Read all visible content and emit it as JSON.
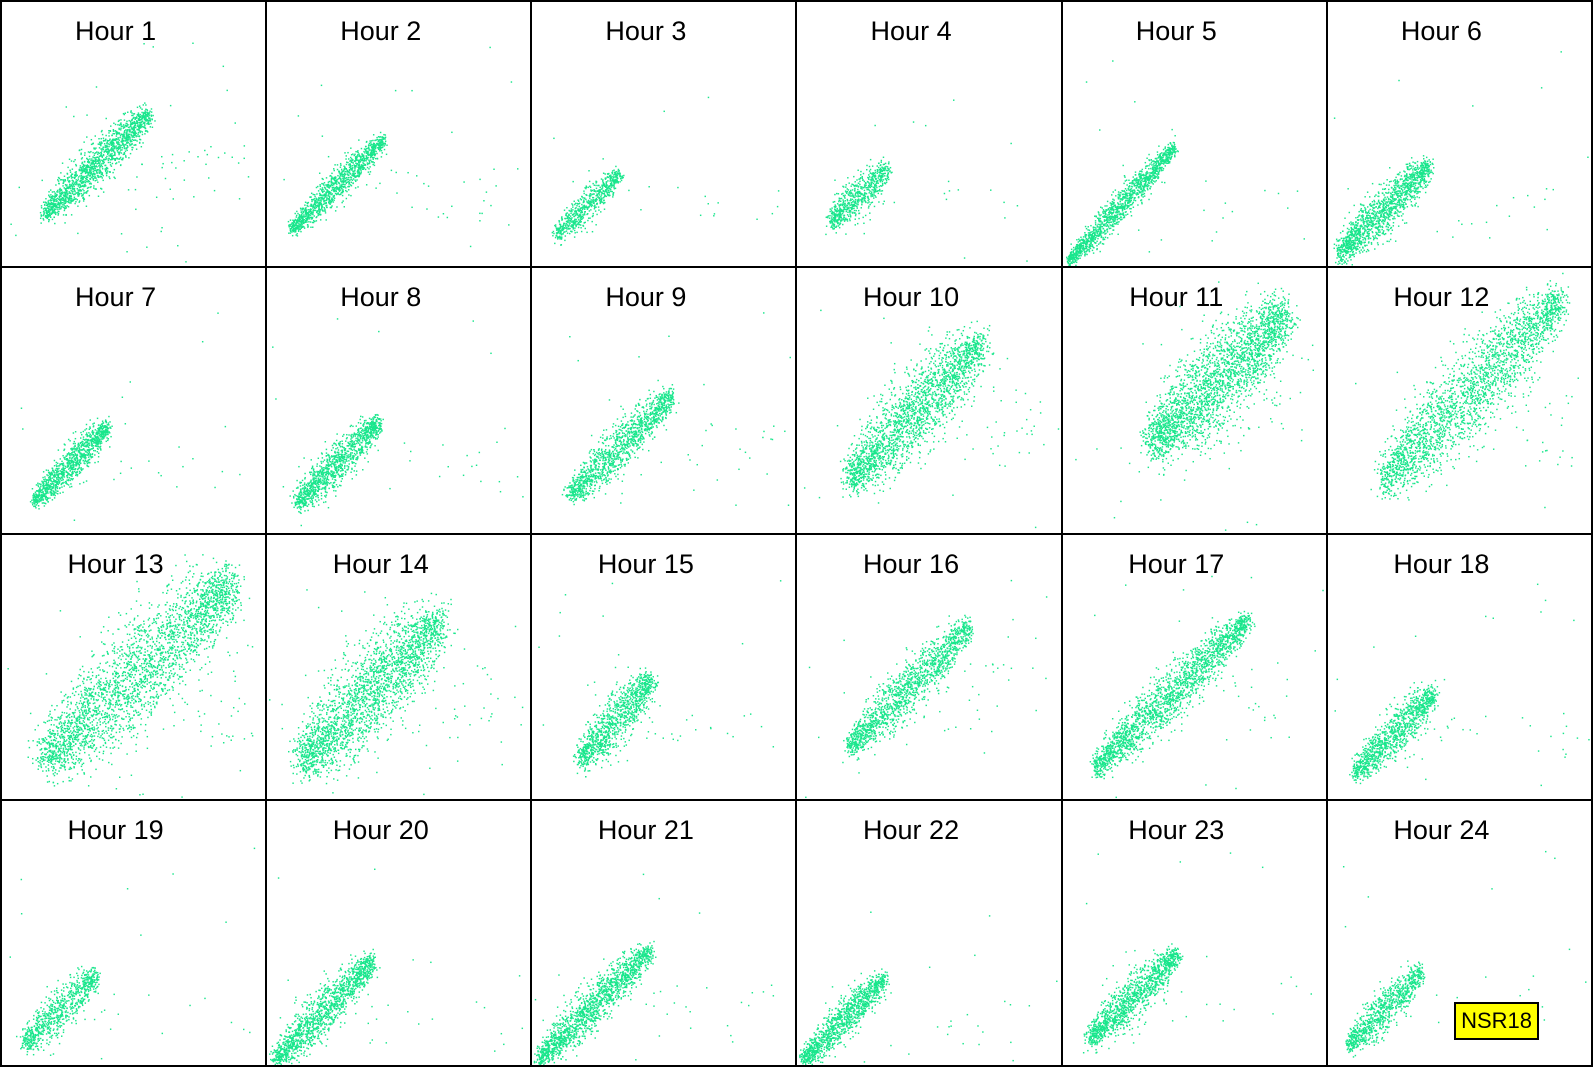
{
  "badge": "NSR18",
  "colors": {
    "points": "#19e68c",
    "border": "#000000",
    "badge_bg": "#ffff00"
  },
  "chart_data": {
    "type": "scatter",
    "layout": "small-multiples 6x4",
    "grid": false,
    "axes_visible": false,
    "panels": [
      {
        "title": "Hour 1",
        "points": 1600,
        "x0": 0.16,
        "y0": 0.2,
        "x1": 0.56,
        "y1": 0.58,
        "spread": 0.03,
        "outliers": 60
      },
      {
        "title": "Hour 2",
        "points": 1200,
        "x0": 0.09,
        "y0": 0.14,
        "x1": 0.44,
        "y1": 0.48,
        "spread": 0.022,
        "outliers": 40
      },
      {
        "title": "Hour 3",
        "points": 700,
        "x0": 0.09,
        "y0": 0.12,
        "x1": 0.33,
        "y1": 0.35,
        "spread": 0.022,
        "outliers": 20
      },
      {
        "title": "Hour 4",
        "points": 700,
        "x0": 0.13,
        "y0": 0.17,
        "x1": 0.34,
        "y1": 0.37,
        "spread": 0.028,
        "outliers": 20
      },
      {
        "title": "Hour 5",
        "points": 1400,
        "x0": 0.02,
        "y0": 0.02,
        "x1": 0.42,
        "y1": 0.45,
        "spread": 0.02,
        "outliers": 25
      },
      {
        "title": "Hour 6",
        "points": 1400,
        "x0": 0.04,
        "y0": 0.05,
        "x1": 0.38,
        "y1": 0.38,
        "spread": 0.032,
        "outliers": 25
      },
      {
        "title": "Hour 7",
        "points": 1100,
        "x0": 0.12,
        "y0": 0.12,
        "x1": 0.4,
        "y1": 0.4,
        "spread": 0.024,
        "outliers": 25
      },
      {
        "title": "Hour 8",
        "points": 1200,
        "x0": 0.11,
        "y0": 0.11,
        "x1": 0.42,
        "y1": 0.42,
        "spread": 0.028,
        "outliers": 35
      },
      {
        "title": "Hour 9",
        "points": 1300,
        "x0": 0.14,
        "y0": 0.14,
        "x1": 0.53,
        "y1": 0.52,
        "spread": 0.03,
        "outliers": 40
      },
      {
        "title": "Hour 10",
        "points": 2200,
        "x0": 0.2,
        "y0": 0.2,
        "x1": 0.7,
        "y1": 0.72,
        "spread": 0.055,
        "outliers": 50
      },
      {
        "title": "Hour 11",
        "points": 2600,
        "x0": 0.34,
        "y0": 0.34,
        "x1": 0.84,
        "y1": 0.82,
        "spread": 0.065,
        "outliers": 50
      },
      {
        "title": "Hour 12",
        "points": 2400,
        "x0": 0.21,
        "y0": 0.2,
        "x1": 0.88,
        "y1": 0.88,
        "spread": 0.06,
        "outliers": 55
      },
      {
        "title": "Hour 13",
        "points": 2800,
        "x0": 0.16,
        "y0": 0.15,
        "x1": 0.87,
        "y1": 0.82,
        "spread": 0.07,
        "outliers": 60
      },
      {
        "title": "Hour 14",
        "points": 2400,
        "x0": 0.13,
        "y0": 0.14,
        "x1": 0.66,
        "y1": 0.68,
        "spread": 0.065,
        "outliers": 60
      },
      {
        "title": "Hour 15",
        "points": 1100,
        "x0": 0.18,
        "y0": 0.15,
        "x1": 0.45,
        "y1": 0.45,
        "spread": 0.035,
        "outliers": 35
      },
      {
        "title": "Hour 16",
        "points": 1500,
        "x0": 0.2,
        "y0": 0.2,
        "x1": 0.65,
        "y1": 0.65,
        "spread": 0.035,
        "outliers": 40
      },
      {
        "title": "Hour 17",
        "points": 2000,
        "x0": 0.12,
        "y0": 0.12,
        "x1": 0.7,
        "y1": 0.68,
        "spread": 0.035,
        "outliers": 35
      },
      {
        "title": "Hour 18",
        "points": 1100,
        "x0": 0.1,
        "y0": 0.1,
        "x1": 0.4,
        "y1": 0.4,
        "spread": 0.03,
        "outliers": 45
      },
      {
        "title": "Hour 19",
        "points": 800,
        "x0": 0.08,
        "y0": 0.08,
        "x1": 0.35,
        "y1": 0.34,
        "spread": 0.03,
        "outliers": 25
      },
      {
        "title": "Hour 20",
        "points": 1400,
        "x0": 0.03,
        "y0": 0.02,
        "x1": 0.4,
        "y1": 0.4,
        "spread": 0.03,
        "outliers": 30
      },
      {
        "title": "Hour 21",
        "points": 1600,
        "x0": 0.02,
        "y0": 0.02,
        "x1": 0.45,
        "y1": 0.44,
        "spread": 0.03,
        "outliers": 30
      },
      {
        "title": "Hour 22",
        "points": 1200,
        "x0": 0.02,
        "y0": 0.02,
        "x1": 0.33,
        "y1": 0.33,
        "spread": 0.026,
        "outliers": 25
      },
      {
        "title": "Hour 23",
        "points": 1300,
        "x0": 0.1,
        "y0": 0.1,
        "x1": 0.43,
        "y1": 0.42,
        "spread": 0.03,
        "outliers": 25
      },
      {
        "title": "Hour 24",
        "points": 900,
        "x0": 0.08,
        "y0": 0.08,
        "x1": 0.35,
        "y1": 0.35,
        "spread": 0.028,
        "outliers": 25
      }
    ]
  }
}
